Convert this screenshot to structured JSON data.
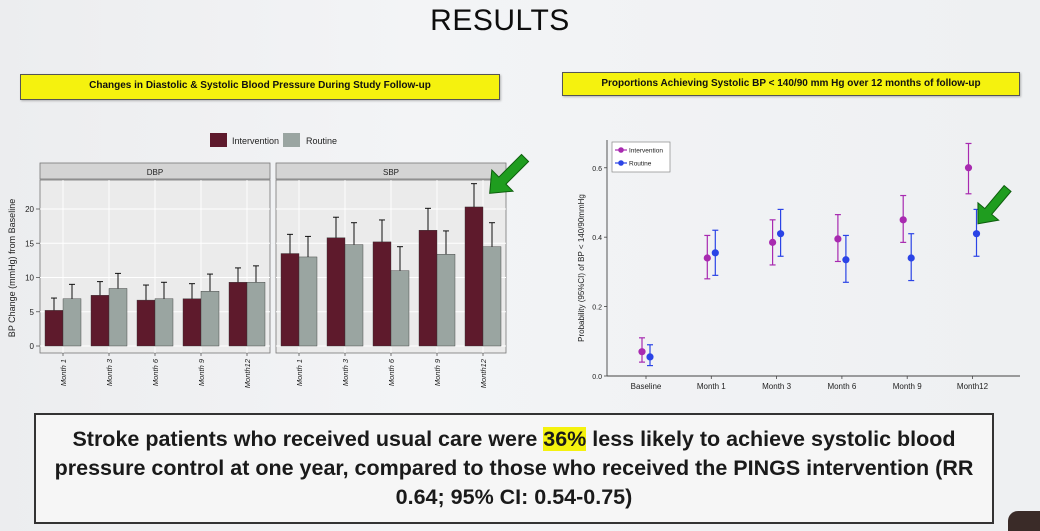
{
  "slide": {
    "title": "RESULTS",
    "left_banner": "Changes in Diastolic & Systolic Blood Pressure During Study Follow-up",
    "right_banner": "Proportions Achieving Systolic BP < 140/90 mm Hg over 12 months of follow-up",
    "summary": {
      "before": "Stroke patients who received usual care were ",
      "highlight": "36%",
      "after": " less likely to achieve systolic blood pressure control at one year, compared to those who received the PINGS intervention (RR 0.64; 95% CI: 0.54-0.75)"
    }
  },
  "colors": {
    "intervention_bar": "#5e1a2c",
    "routine_bar": "#9aa5a1",
    "intervention_point": "#a82ab0",
    "routine_point": "#2b44e6",
    "arrow": "#1f9d1f",
    "highlight": "#f5f20e"
  },
  "chart_data": [
    {
      "type": "bar",
      "ylabel": "BP Change (mmHg) from Baseline",
      "ylim": [
        0,
        24
      ],
      "yticks": [
        0,
        5,
        10,
        15,
        20
      ],
      "legend": [
        "Intervention",
        "Routine"
      ],
      "grid": true,
      "panels": [
        {
          "title": "DBP",
          "categories": [
            "Month 1",
            "Month 3",
            "Month 6",
            "Month 9",
            "Month12"
          ],
          "series": [
            {
              "name": "Intervention",
              "values": [
                5.2,
                7.4,
                6.7,
                6.9,
                9.3
              ],
              "err": [
                1.8,
                2.0,
                2.2,
                2.2,
                2.1
              ]
            },
            {
              "name": "Routine",
              "values": [
                6.9,
                8.4,
                6.9,
                8.0,
                9.3
              ],
              "err": [
                2.1,
                2.2,
                2.4,
                2.5,
                2.4
              ]
            }
          ]
        },
        {
          "title": "SBP",
          "categories": [
            "Month 1",
            "Month 3",
            "Month 6",
            "Month 9",
            "Month12"
          ],
          "series": [
            {
              "name": "Intervention",
              "values": [
                13.5,
                15.8,
                15.2,
                16.9,
                20.3
              ],
              "err": [
                2.8,
                3.0,
                3.2,
                3.2,
                3.4
              ]
            },
            {
              "name": "Routine",
              "values": [
                13.0,
                14.8,
                11.0,
                13.4,
                14.5
              ],
              "err": [
                3.0,
                3.2,
                3.5,
                3.4,
                3.5
              ]
            }
          ]
        }
      ]
    },
    {
      "type": "scatter",
      "ylabel": "Probability (95%CI) of BP < 140/90mmHg",
      "categories": [
        "Baseline",
        "Month 1",
        "Month 3",
        "Month 6",
        "Month 9",
        "Month12"
      ],
      "ylim": [
        0,
        0.68
      ],
      "yticks": [
        0.0,
        0.2,
        0.4,
        0.6
      ],
      "ytick_labels": [
        "0.0",
        "0.2",
        "0.4",
        "0.6"
      ],
      "legend": [
        "Intervention",
        "Routine"
      ],
      "series": [
        {
          "name": "Intervention",
          "values": [
            0.07,
            0.34,
            0.385,
            0.395,
            0.45,
            0.6
          ],
          "lower": [
            0.04,
            0.28,
            0.32,
            0.33,
            0.385,
            0.525
          ],
          "upper": [
            0.11,
            0.405,
            0.45,
            0.465,
            0.52,
            0.67
          ]
        },
        {
          "name": "Routine",
          "values": [
            0.055,
            0.355,
            0.41,
            0.335,
            0.34,
            0.41
          ],
          "lower": [
            0.03,
            0.29,
            0.345,
            0.27,
            0.275,
            0.345
          ],
          "upper": [
            0.09,
            0.42,
            0.48,
            0.405,
            0.41,
            0.48
          ]
        }
      ]
    }
  ]
}
